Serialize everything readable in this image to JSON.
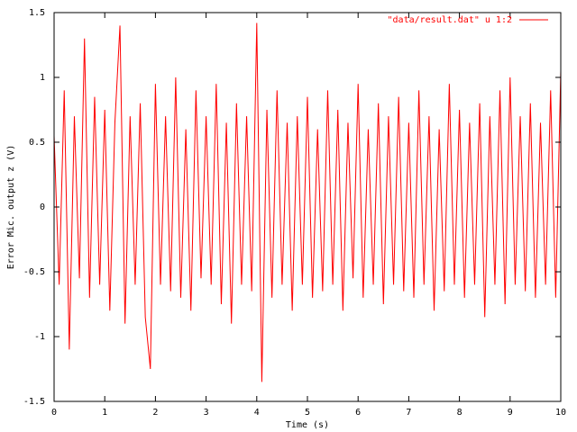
{
  "chart_data": {
    "type": "line",
    "xlabel": "Time (s)",
    "ylabel": "Error Mic. output z (V)",
    "legend": "top-right",
    "x": [
      0,
      0.1,
      0.2,
      0.3,
      0.4,
      0.5,
      0.6,
      0.7,
      0.8,
      0.9,
      1,
      1.1,
      1.2,
      1.3,
      1.4,
      1.5,
      1.6,
      1.7,
      1.8,
      1.9,
      2,
      2.1,
      2.2,
      2.3,
      2.4,
      2.5,
      2.6,
      2.7,
      2.8,
      2.9,
      3,
      3.1,
      3.2,
      3.3,
      3.4,
      3.5,
      3.6,
      3.7,
      3.8,
      3.9,
      4,
      4.1,
      4.2,
      4.3,
      4.4,
      4.5,
      4.6,
      4.7,
      4.8,
      4.9,
      5,
      5.1,
      5.2,
      5.3,
      5.4,
      5.5,
      5.6,
      5.7,
      5.8,
      5.9,
      6,
      6.1,
      6.2,
      6.3,
      6.4,
      6.5,
      6.6,
      6.7,
      6.8,
      6.9,
      7,
      7.1,
      7.2,
      7.3,
      7.4,
      7.5,
      7.6,
      7.7,
      7.8,
      7.9,
      8,
      8.1,
      8.2,
      8.3,
      8.4,
      8.5,
      8.6,
      8.7,
      8.8,
      8.9,
      9,
      9.1,
      9.2,
      9.3,
      9.4,
      9.5,
      9.6,
      9.7,
      9.8,
      9.9,
      10
    ],
    "series": [
      {
        "name": "\"data/result.dat\" u 1:2",
        "color": "#ff0000",
        "values": [
          0.55,
          -0.6,
          0.9,
          -1.1,
          0.7,
          -0.55,
          1.3,
          -0.7,
          0.85,
          -0.6,
          0.75,
          -0.8,
          0.65,
          1.4,
          -0.9,
          0.7,
          -0.6,
          0.8,
          -0.85,
          -1.25,
          0.95,
          -0.6,
          0.7,
          -0.65,
          1.0,
          -0.7,
          0.6,
          -0.8,
          0.9,
          -0.55,
          0.7,
          -0.6,
          0.95,
          -0.75,
          0.65,
          -0.9,
          0.8,
          -0.6,
          0.7,
          -0.65,
          1.42,
          -1.35,
          0.75,
          -0.7,
          0.9,
          -0.6,
          0.65,
          -0.8,
          0.7,
          -0.6,
          0.85,
          -0.7,
          0.6,
          -0.65,
          0.9,
          -0.6,
          0.75,
          -0.8,
          0.65,
          -0.55,
          0.95,
          -0.7,
          0.6,
          -0.6,
          0.8,
          -0.75,
          0.7,
          -0.6,
          0.85,
          -0.65,
          0.65,
          -0.7,
          0.9,
          -0.6,
          0.7,
          -0.8,
          0.6,
          -0.65,
          0.95,
          -0.6,
          0.75,
          -0.7,
          0.65,
          -0.6,
          0.8,
          -0.85,
          0.7,
          -0.6,
          0.9,
          -0.75,
          1.0,
          -0.6,
          0.7,
          -0.65,
          0.8,
          -0.7,
          0.65,
          -0.6,
          0.9,
          -0.7,
          1.05
        ]
      }
    ],
    "xlim": [
      0,
      10
    ],
    "xticks": [
      0,
      1,
      2,
      3,
      4,
      5,
      6,
      7,
      8,
      9,
      10
    ],
    "ylim": [
      -1.5,
      1.5
    ],
    "yticks": [
      -1.5,
      -1,
      -0.5,
      0,
      0.5,
      1,
      1.5
    ],
    "grid": false
  }
}
